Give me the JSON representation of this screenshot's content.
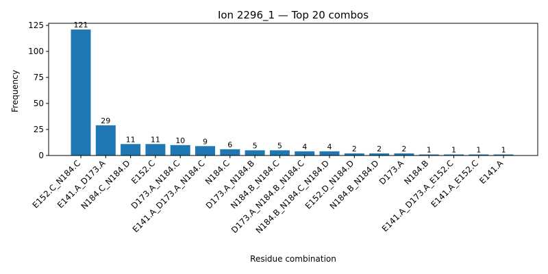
{
  "chart_data": {
    "type": "bar",
    "title": "Ion 2296_1 — Top 20 combos",
    "xlabel": "Residue combination",
    "ylabel": "Frequency",
    "ylim": [
      0,
      127
    ],
    "yticks": [
      0,
      25,
      50,
      75,
      100,
      125
    ],
    "bar_color": "#1f77b4",
    "categories": [
      "E152.C_N184.C",
      "E141.A_D173.A",
      "N184.C_N184.D",
      "E152.C",
      "D173.A_N184.C",
      "E141.A_D173.A_N184.C",
      "N184.C",
      "D173.A_N184.B",
      "N184.B_N184.C",
      "D173.A_N184.B_N184.C",
      "N184.B_N184.C_N184.D",
      "E152.D_N184.D",
      "N184.B_N184.D",
      "D173.A",
      "N184.B",
      "E141.A_D173.A_E152.C",
      "E141.A_E152.C",
      "E141.A"
    ],
    "values": [
      121,
      29,
      11,
      11,
      10,
      9,
      6,
      5,
      5,
      4,
      4,
      2,
      2,
      2,
      1,
      1,
      1,
      1
    ]
  }
}
